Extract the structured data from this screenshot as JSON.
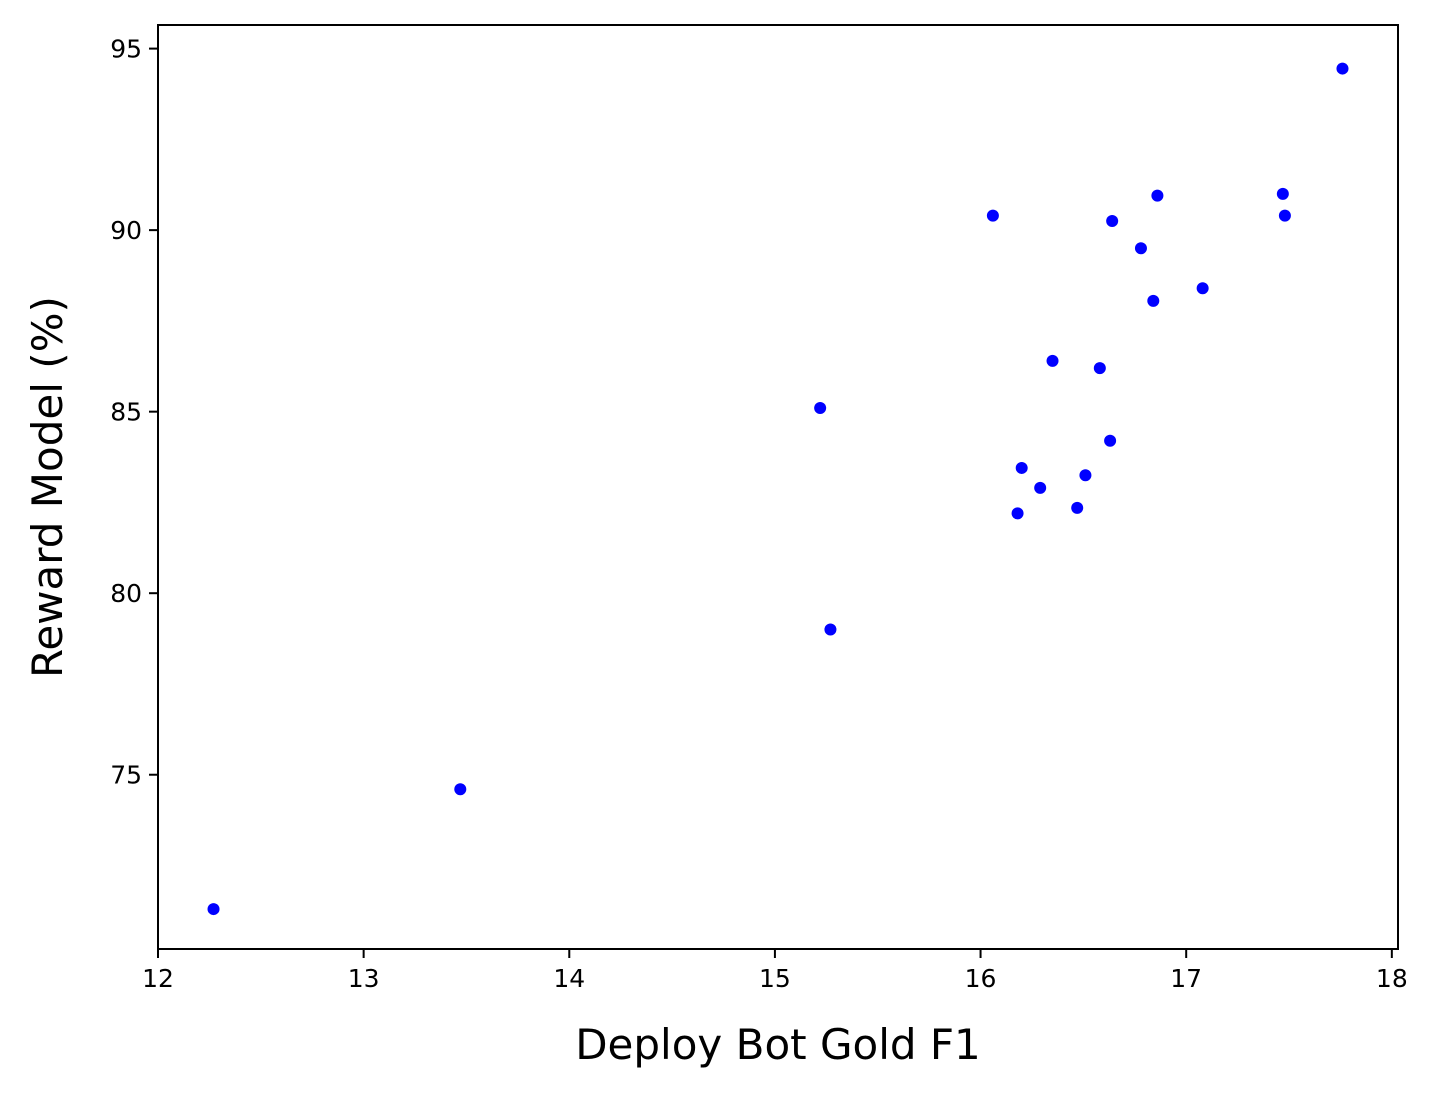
{
  "chart_data": {
    "type": "scatter",
    "title": "",
    "xlabel": "Deploy Bot Gold F1",
    "ylabel": "Reward Model (%)",
    "xlim": [
      12.0,
      18.03
    ],
    "ylim": [
      70.2,
      95.65
    ],
    "xticks": [
      12,
      13,
      14,
      15,
      16,
      17,
      18
    ],
    "yticks": [
      75,
      80,
      85,
      90,
      95
    ],
    "grid": false,
    "legend": "none",
    "marker_color": "#0000ff",
    "points": [
      {
        "x": 12.27,
        "y": 71.3
      },
      {
        "x": 13.47,
        "y": 74.6
      },
      {
        "x": 15.22,
        "y": 85.1
      },
      {
        "x": 15.27,
        "y": 79.0
      },
      {
        "x": 16.06,
        "y": 90.4
      },
      {
        "x": 16.18,
        "y": 82.2
      },
      {
        "x": 16.2,
        "y": 83.45
      },
      {
        "x": 16.29,
        "y": 82.9
      },
      {
        "x": 16.35,
        "y": 86.4
      },
      {
        "x": 16.47,
        "y": 82.35
      },
      {
        "x": 16.51,
        "y": 83.25
      },
      {
        "x": 16.58,
        "y": 86.2
      },
      {
        "x": 16.63,
        "y": 84.2
      },
      {
        "x": 16.64,
        "y": 90.25
      },
      {
        "x": 16.78,
        "y": 89.5
      },
      {
        "x": 16.84,
        "y": 88.05
      },
      {
        "x": 16.86,
        "y": 90.95
      },
      {
        "x": 17.08,
        "y": 88.4
      },
      {
        "x": 17.47,
        "y": 91.0
      },
      {
        "x": 17.48,
        "y": 90.4
      },
      {
        "x": 17.76,
        "y": 94.45
      }
    ]
  }
}
